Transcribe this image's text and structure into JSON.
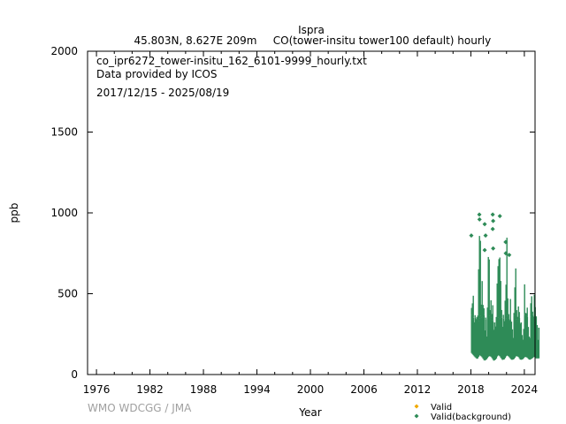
{
  "chart_data": {
    "type": "scatter",
    "title": "Ispra",
    "subtitle_location": "45.803N, 8.627E 209m",
    "subtitle_species": "CO(tower-insitu tower100 default) hourly",
    "annotations": [
      "co_ipr6272_tower-insitu_162_6101-9999_hourly.txt",
      "Data provided by ICOS",
      "2017/12/15 - 2025/08/19"
    ],
    "xlabel": "Year",
    "ylabel": "ppb",
    "xlim": [
      1975.0,
      2025.2
    ],
    "ylim": [
      0,
      2000
    ],
    "x_ticks": [
      1976,
      1982,
      1988,
      1994,
      2000,
      2006,
      2012,
      2018,
      2024
    ],
    "y_ticks": [
      0,
      500,
      1000,
      1500,
      2000
    ],
    "grid": false,
    "legend_position": "bottom-right",
    "series": [
      {
        "name": "Valid",
        "color": "#f0a800",
        "points": []
      },
      {
        "name": "Valid(background)",
        "color": "#2e8b57",
        "seasonal_envelope": [
          {
            "x": 2017.96,
            "low": 140,
            "high": 860
          },
          {
            "x": 2018.1,
            "low": 130,
            "high": 700
          },
          {
            "x": 2018.4,
            "low": 110,
            "high": 420
          },
          {
            "x": 2018.7,
            "low": 95,
            "high": 380
          },
          {
            "x": 2018.95,
            "low": 120,
            "high": 1000
          },
          {
            "x": 2019.2,
            "low": 110,
            "high": 640
          },
          {
            "x": 2019.5,
            "low": 85,
            "high": 380
          },
          {
            "x": 2019.75,
            "low": 95,
            "high": 380
          },
          {
            "x": 2020.0,
            "low": 115,
            "high": 860
          },
          {
            "x": 2020.25,
            "low": 110,
            "high": 560
          },
          {
            "x": 2020.55,
            "low": 85,
            "high": 380
          },
          {
            "x": 2020.8,
            "low": 95,
            "high": 380
          },
          {
            "x": 2021.0,
            "low": 120,
            "high": 990
          },
          {
            "x": 2021.2,
            "low": 115,
            "high": 800
          },
          {
            "x": 2021.5,
            "low": 90,
            "high": 380
          },
          {
            "x": 2021.75,
            "low": 95,
            "high": 380
          },
          {
            "x": 2022.0,
            "low": 120,
            "high": 970
          },
          {
            "x": 2022.25,
            "low": 110,
            "high": 600
          },
          {
            "x": 2022.55,
            "low": 90,
            "high": 370
          },
          {
            "x": 2022.8,
            "low": 95,
            "high": 370
          },
          {
            "x": 2023.05,
            "low": 115,
            "high": 790
          },
          {
            "x": 2023.3,
            "low": 110,
            "high": 520
          },
          {
            "x": 2023.55,
            "low": 90,
            "high": 340
          },
          {
            "x": 2023.8,
            "low": 95,
            "high": 340
          },
          {
            "x": 2024.05,
            "low": 110,
            "high": 730
          },
          {
            "x": 2024.3,
            "low": 105,
            "high": 520
          },
          {
            "x": 2024.55,
            "low": 90,
            "high": 330
          },
          {
            "x": 2024.85,
            "low": 100,
            "high": 680
          },
          {
            "x": 2025.05,
            "low": 110,
            "high": 560
          },
          {
            "x": 2025.3,
            "low": 100,
            "high": 360
          },
          {
            "x": 2025.63,
            "low": 100,
            "high": 300
          }
        ],
        "outliers": [
          {
            "x": 2018.95,
            "y": 990
          },
          {
            "x": 2018.97,
            "y": 960
          },
          {
            "x": 2019.55,
            "y": 930
          },
          {
            "x": 2019.65,
            "y": 860
          },
          {
            "x": 2020.45,
            "y": 990
          },
          {
            "x": 2020.5,
            "y": 950
          },
          {
            "x": 2020.45,
            "y": 900
          },
          {
            "x": 2021.25,
            "y": 980
          },
          {
            "x": 2021.9,
            "y": 820
          },
          {
            "x": 2021.92,
            "y": 750
          },
          {
            "x": 2019.55,
            "y": 770
          },
          {
            "x": 2020.5,
            "y": 780
          },
          {
            "x": 2018.05,
            "y": 860
          },
          {
            "x": 2022.3,
            "y": 740
          }
        ]
      }
    ]
  },
  "footer": {
    "credit": "WMO WDCGG / JMA"
  }
}
